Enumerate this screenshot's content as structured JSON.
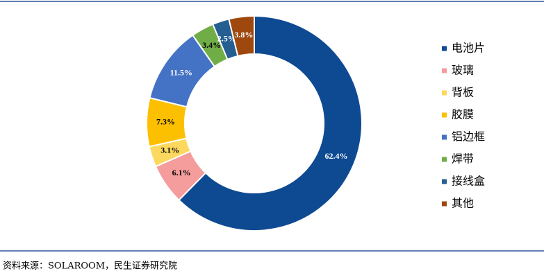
{
  "chart_data": {
    "type": "donut",
    "categories": [
      "电池片",
      "玻璃",
      "背板",
      "胶膜",
      "铝边框",
      "焊带",
      "接线盒",
      "其他"
    ],
    "values": [
      62.4,
      6.1,
      3.1,
      7.3,
      11.5,
      3.4,
      2.5,
      3.8
    ],
    "value_labels": [
      "62.4%",
      "6.1%",
      "3.1%",
      "7.3%",
      "11.5%",
      "3.4%",
      "2.5%",
      "3.8%"
    ],
    "colors": [
      "#0e4a92",
      "#f59c9c",
      "#fcd95e",
      "#fdc000",
      "#4472c4",
      "#70ad47",
      "#255e91",
      "#9e480e"
    ],
    "legend": "right"
  },
  "source": "资料来源：SOLAROOM，民生证券研究院"
}
